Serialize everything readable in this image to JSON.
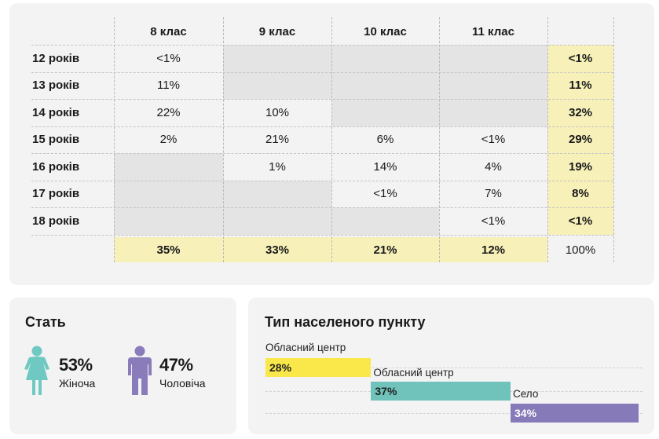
{
  "colors": {
    "yellow_bar": "#fae84a",
    "teal_bar": "#70c3bb",
    "purple_bar": "#877ab8",
    "female_icon": "#6fc9c2",
    "male_icon": "#8a7cba",
    "total_highlight": "#f7f0b9",
    "empty_cell": "#e4e4e4"
  },
  "chart_data": [
    {
      "type": "table",
      "columns": [
        "8 клас",
        "9 клас",
        "10 клас",
        "11 клас",
        ""
      ],
      "rows": [
        {
          "label": "12 років",
          "values": [
            "<1%",
            "",
            "",
            "",
            "<1%"
          ]
        },
        {
          "label": "13 років",
          "values": [
            "11%",
            "",
            "",
            "",
            "11%"
          ]
        },
        {
          "label": "14 років",
          "values": [
            "22%",
            "10%",
            "",
            "",
            "32%"
          ]
        },
        {
          "label": "15 років",
          "values": [
            "2%",
            "21%",
            "6%",
            "<1%",
            "29%"
          ]
        },
        {
          "label": "16 років",
          "values": [
            "",
            "1%",
            "14%",
            "4%",
            "19%"
          ]
        },
        {
          "label": "17 років",
          "values": [
            "",
            "",
            "<1%",
            "7%",
            "8%"
          ]
        },
        {
          "label": "18 років",
          "values": [
            "",
            "",
            "",
            "<1%",
            "<1%"
          ]
        }
      ],
      "totals": [
        "35%",
        "33%",
        "21%",
        "12%",
        "100%"
      ]
    },
    {
      "type": "bar",
      "title": "Стать",
      "categories": [
        "Жіноча",
        "Чоловіча"
      ],
      "values": [
        53,
        47
      ],
      "value_labels": [
        "53%",
        "47%"
      ],
      "icons": [
        "female-figure-icon",
        "male-figure-icon"
      ]
    },
    {
      "type": "bar",
      "title": "Тип населеного пункту",
      "categories": [
        "Обласний центр",
        "Обласний центр",
        "Село"
      ],
      "values": [
        28,
        37,
        34
      ],
      "value_labels": [
        "28%",
        "37%",
        "34%"
      ],
      "colors": [
        "#fae84a",
        "#70c3bb",
        "#877ab8"
      ]
    }
  ]
}
